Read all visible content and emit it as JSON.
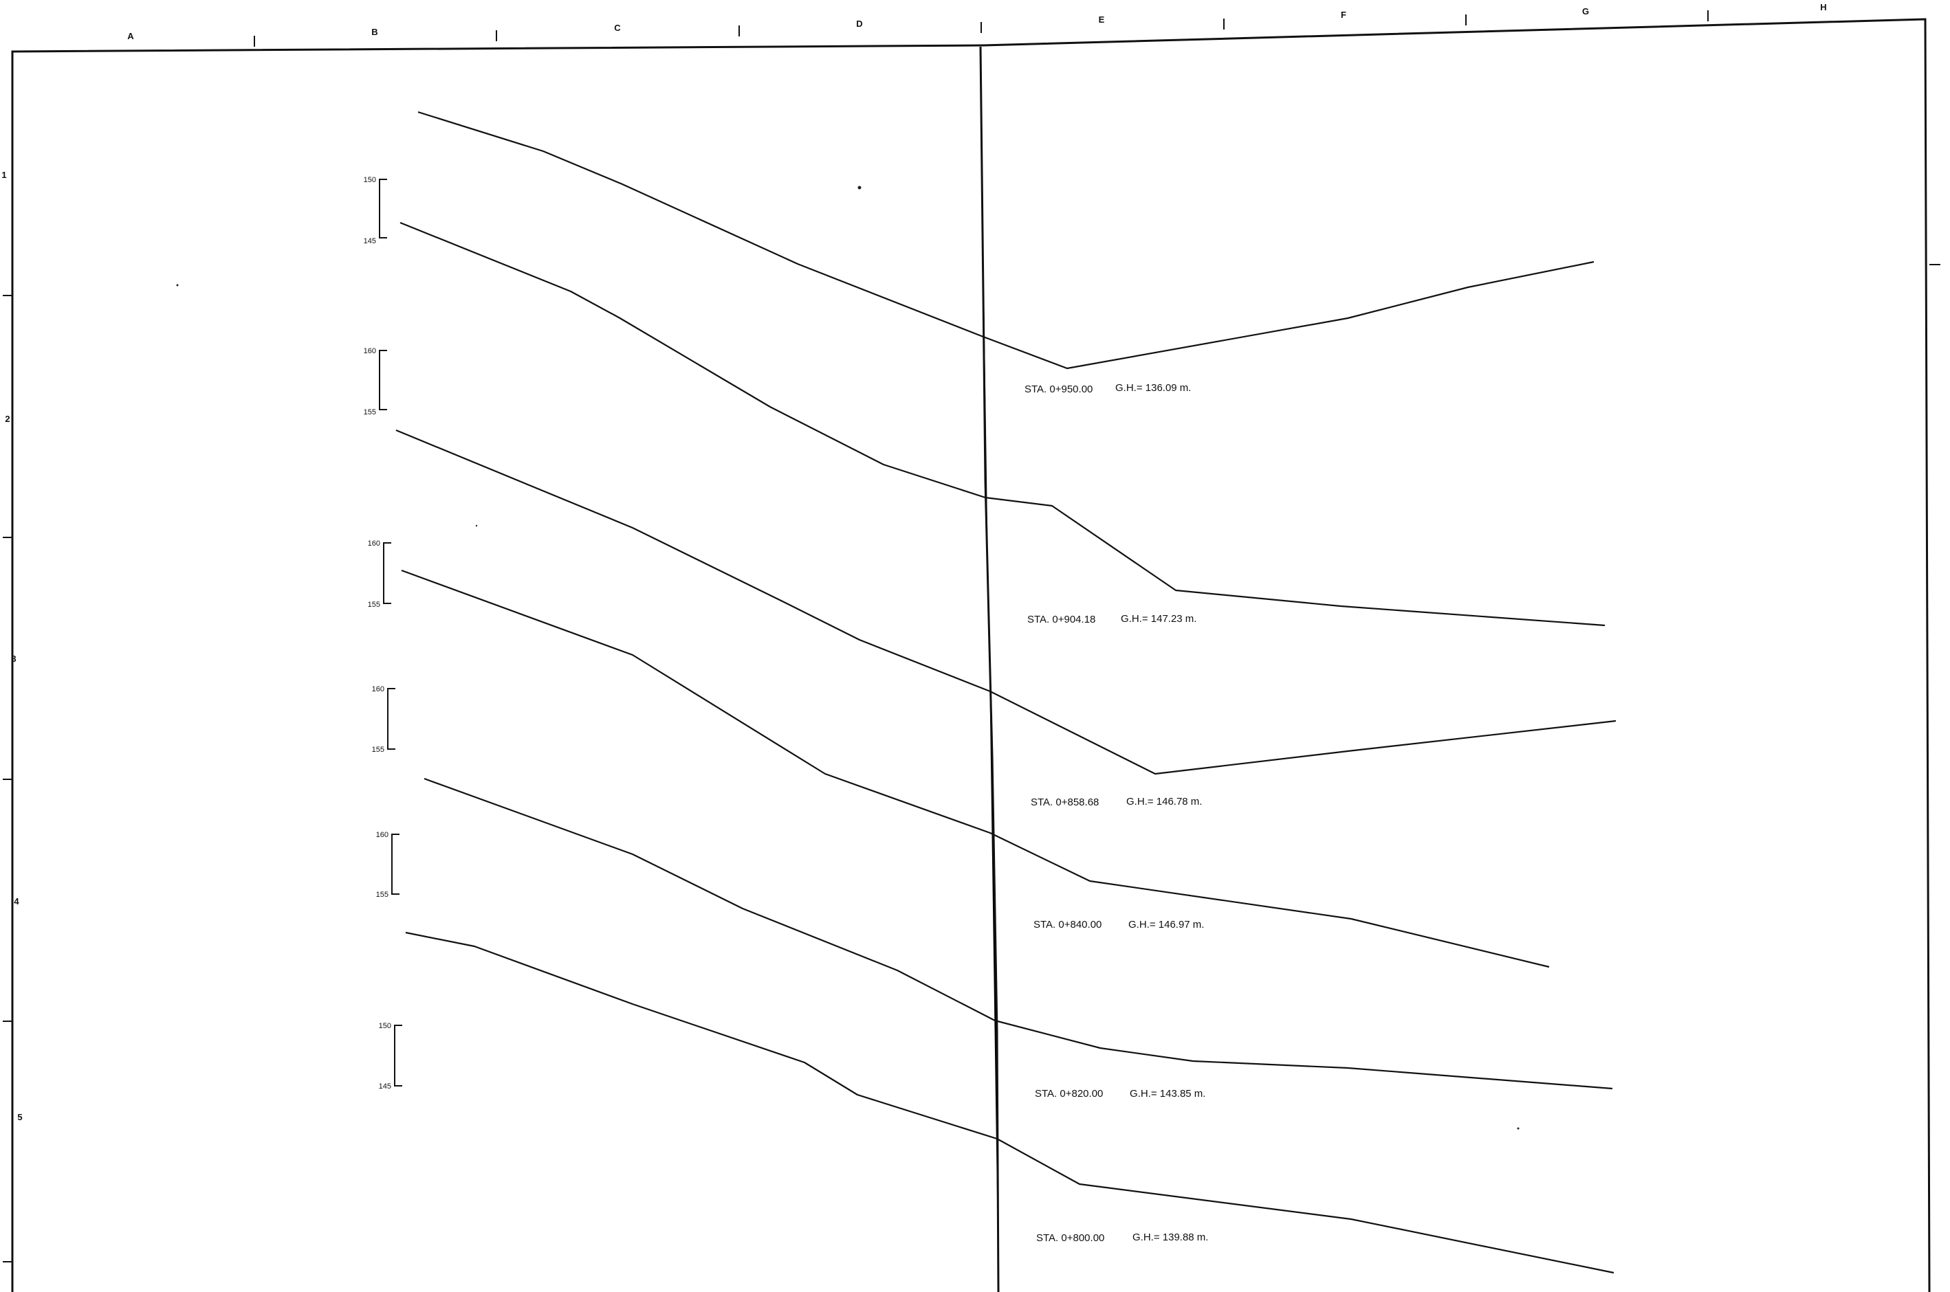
{
  "drawing": {
    "column_letters": [
      "A",
      "B",
      "C",
      "D",
      "E",
      "F",
      "G",
      "H"
    ],
    "row_numbers": [
      "1",
      "2",
      "3",
      "4",
      "5"
    ]
  },
  "scale_bars": [
    {
      "top_label": "150",
      "bottom_label": "145"
    },
    {
      "top_label": "160",
      "bottom_label": "155"
    },
    {
      "top_label": "160",
      "bottom_label": "155"
    },
    {
      "top_label": "160",
      "bottom_label": "155"
    },
    {
      "top_label": "160",
      "bottom_label": "155"
    },
    {
      "top_label": "150",
      "bottom_label": "145"
    }
  ],
  "stations": [
    {
      "label": "STA. 0+950.00",
      "gh": "G.H.= 136.09 m."
    },
    {
      "label": "STA. 0+904.18",
      "gh": "G.H.= 147.23 m."
    },
    {
      "label": "STA. 0+858.68",
      "gh": "G.H.= 146.78 m."
    },
    {
      "label": "STA. 0+840.00",
      "gh": "G.H.= 146.97 m."
    },
    {
      "label": "STA. 0+820.00",
      "gh": "G.H.= 143.85 m."
    },
    {
      "label": "STA. 0+800.00",
      "gh": "G.H.= 139.88 m."
    }
  ]
}
